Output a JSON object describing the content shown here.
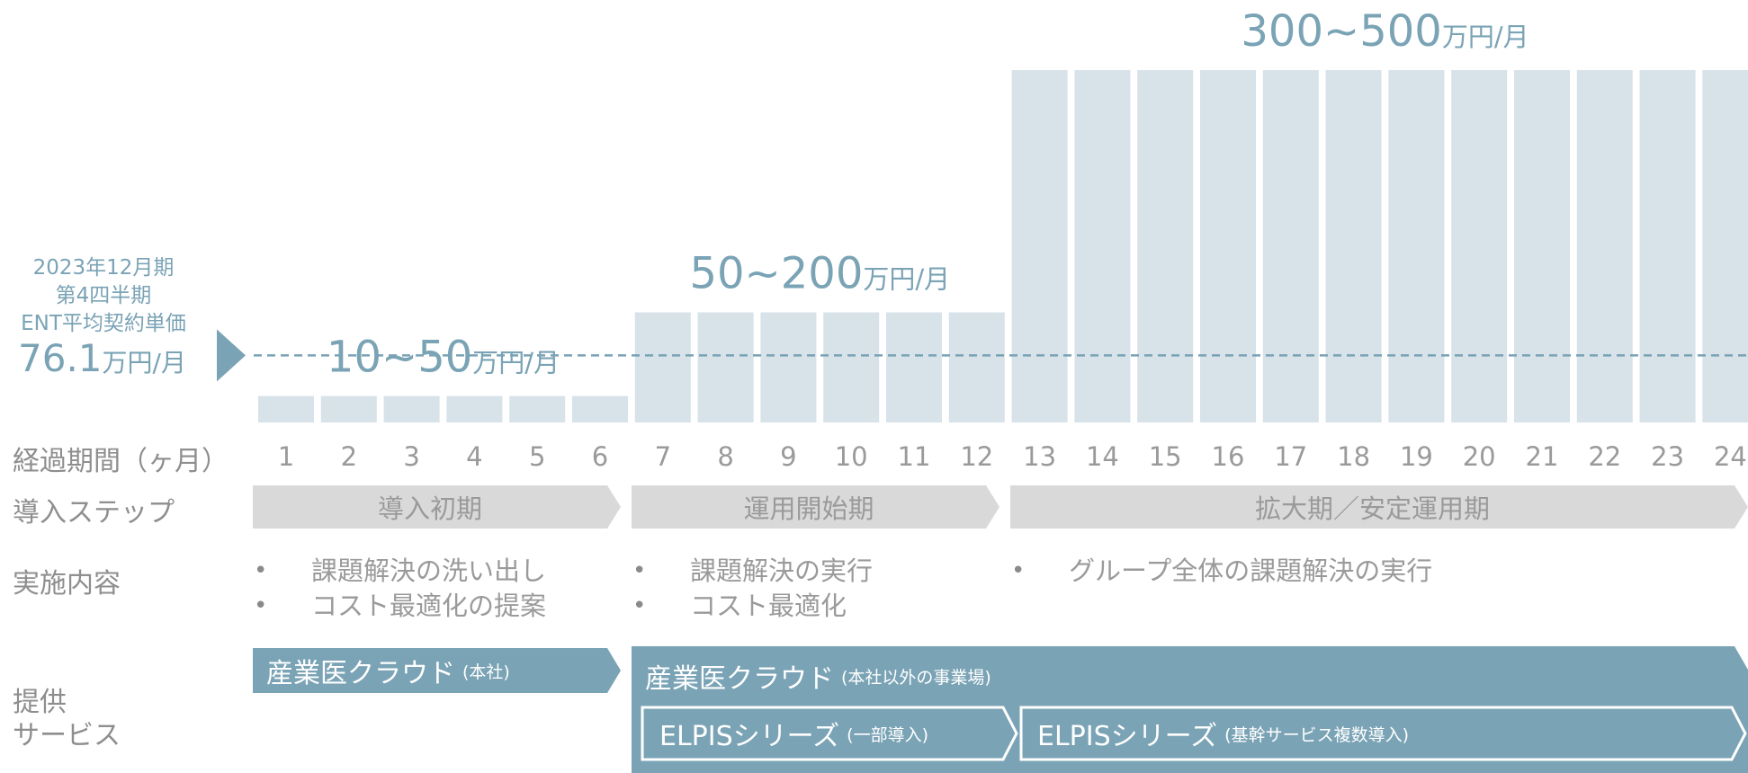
{
  "chart_data": {
    "type": "bar",
    "categories": [
      "1",
      "2",
      "3",
      "4",
      "5",
      "6",
      "7",
      "8",
      "9",
      "10",
      "11",
      "12",
      "13",
      "14",
      "15",
      "16",
      "17",
      "18",
      "19",
      "20",
      "21",
      "22",
      "23",
      "24"
    ],
    "values": [
      30,
      30,
      30,
      30,
      30,
      30,
      125,
      125,
      125,
      125,
      125,
      125,
      400,
      400,
      400,
      400,
      400,
      400,
      400,
      400,
      400,
      400,
      400,
      400
    ],
    "ylim": [
      0,
      400
    ],
    "reference_line": {
      "value": 76.1
    },
    "tiers": [
      {
        "from": 1,
        "to": 6,
        "num": "10~50",
        "unit": "万円/月"
      },
      {
        "from": 7,
        "to": 12,
        "num": "50~200",
        "unit": "万円/月"
      },
      {
        "from": 13,
        "to": 24,
        "num": "300~500",
        "unit": "万円/月"
      }
    ],
    "colors": {
      "bar": "#d7e2e9",
      "accent": "#7aa3b5",
      "chevron": "#d9d9d9"
    }
  },
  "reference": {
    "line1": "2023年12月期",
    "line2": "第4四半期",
    "line3": "ENT平均契約単価",
    "value_num": "76.1",
    "value_unit": "万円/月"
  },
  "rows": {
    "period": "経過期間（ヶ月）",
    "step": "導入ステップ",
    "content": "実施内容",
    "service_line1": "提供",
    "service_line2": "サービス"
  },
  "steps": [
    "導入初期",
    "運用開始期",
    "拡大期／安定運用期"
  ],
  "contents": [
    [
      "課題解決の洗い出し",
      "コスト最適化の提案"
    ],
    [
      "課題解決の実行",
      "コスト最適化"
    ],
    [
      "グループ全体の課題解決の実行"
    ]
  ],
  "services": {
    "s1_main": "産業医クラウド",
    "s1_sub": "(本社)",
    "s2_main": "産業医クラウド",
    "s2_sub": "(本社以外の事業場)",
    "s3_main": "ELPISシリーズ",
    "s3_sub": "(一部導入)",
    "s4_main": "ELPISシリーズ",
    "s4_sub": "(基幹サービス複数導入)"
  }
}
